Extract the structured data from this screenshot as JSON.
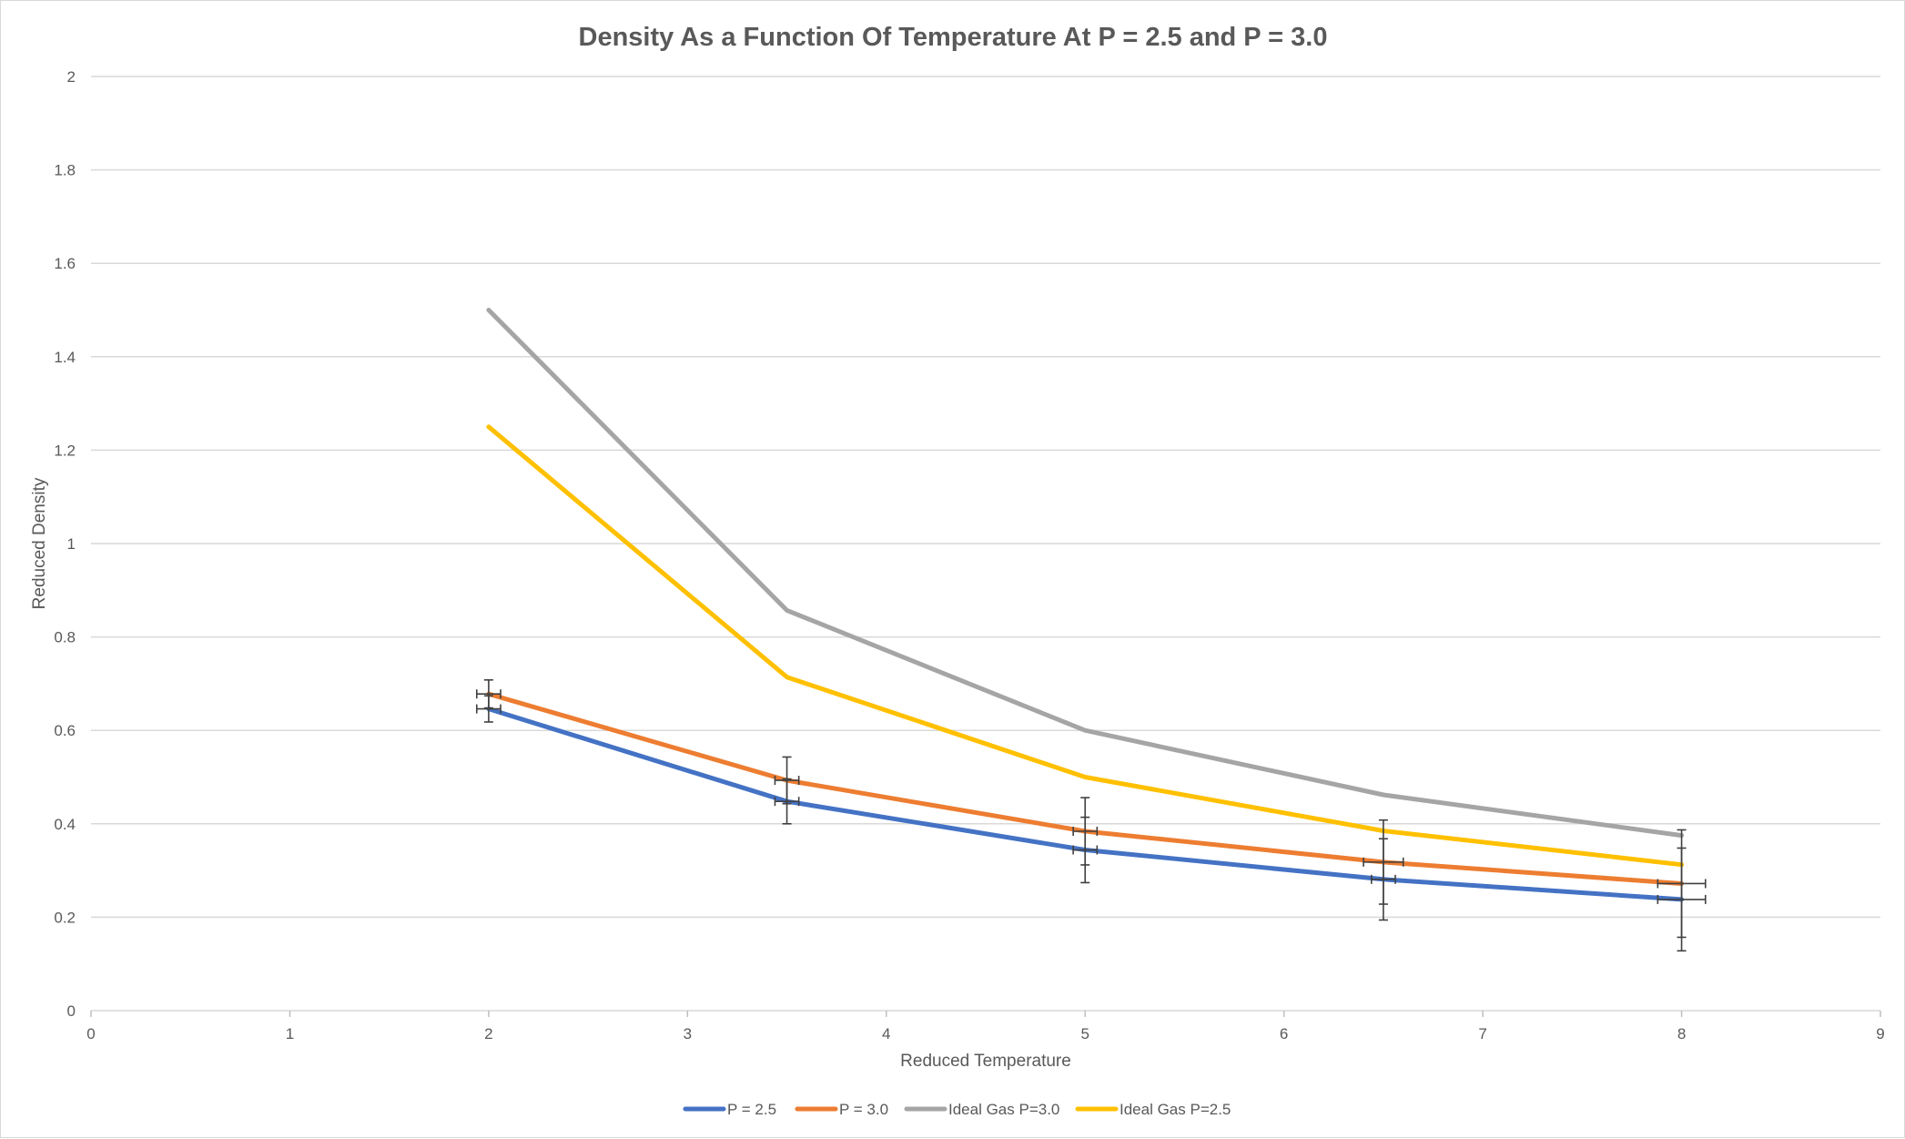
{
  "chart_data": {
    "type": "line",
    "title": "Density As a Function Of Temperature At P = 2.5 and P = 3.0",
    "xlabel": "Reduced Temperature",
    "ylabel": "Reduced Density",
    "xlim": [
      0,
      9
    ],
    "ylim": [
      0,
      2
    ],
    "x_ticks": [
      0,
      1,
      2,
      3,
      4,
      5,
      6,
      7,
      8,
      9
    ],
    "y_ticks": [
      0,
      0.2,
      0.4,
      0.6,
      0.8,
      1,
      1.2,
      1.4,
      1.6,
      1.8,
      2
    ],
    "x_tick_labels": [
      "0",
      "1",
      "2",
      "3",
      "4",
      "5",
      "6",
      "7",
      "8",
      "9"
    ],
    "y_tick_labels": [
      "0",
      "0.2",
      "0.4",
      "0.6",
      "0.8",
      "1",
      "1.2",
      "1.4",
      "1.6",
      "1.8",
      "2"
    ],
    "grid": true,
    "legend_position": "bottom",
    "x": [
      2,
      3.5,
      5,
      6.5,
      8
    ],
    "series": [
      {
        "name": "P = 2.5",
        "color": "#4472c4",
        "values": [
          0.646,
          0.448,
          0.344,
          0.281,
          0.238
        ],
        "y_error": [
          0.028,
          0.048,
          0.07,
          0.087,
          0.11
        ],
        "x_error": [
          0.06,
          0.06,
          0.06,
          0.06,
          0.12
        ]
      },
      {
        "name": "P = 3.0",
        "color": "#ed7d31",
        "values": [
          0.678,
          0.493,
          0.384,
          0.318,
          0.272
        ],
        "y_error": [
          0.03,
          0.05,
          0.072,
          0.09,
          0.115
        ],
        "x_error": [
          0.06,
          0.06,
          0.06,
          0.1,
          0.12
        ]
      },
      {
        "name": "Ideal Gas P=3.0",
        "color": "#a5a5a5",
        "values": [
          1.5,
          0.857,
          0.6,
          0.462,
          0.375
        ]
      },
      {
        "name": "Ideal Gas P=2.5",
        "color": "#ffc000",
        "values": [
          1.25,
          0.714,
          0.5,
          0.385,
          0.3125
        ]
      }
    ]
  }
}
